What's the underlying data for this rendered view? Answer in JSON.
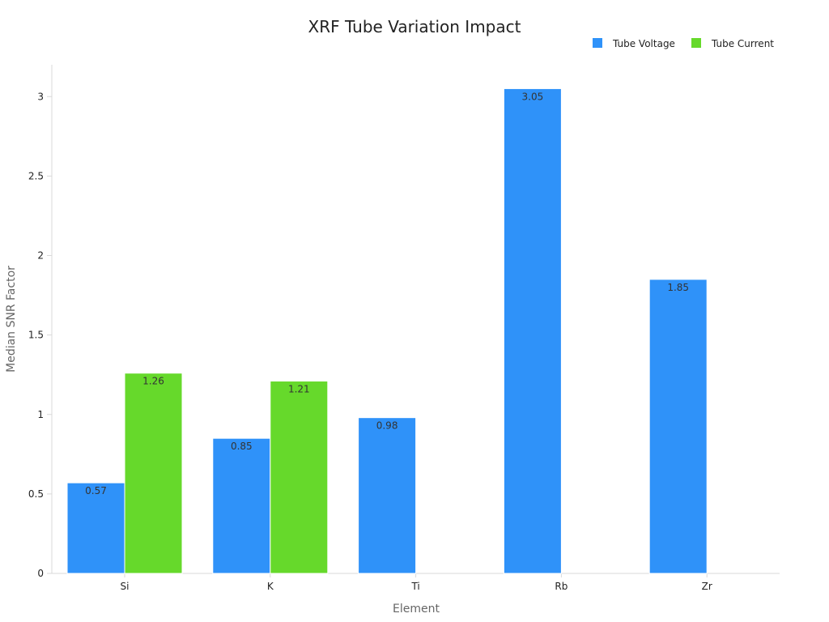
{
  "chart_data": {
    "type": "bar",
    "title": "XRF Tube Variation Impact",
    "xlabel": "Element",
    "ylabel": "Median SNR Factor",
    "categories": [
      "Si",
      "K",
      "Ti",
      "Rb",
      "Zr"
    ],
    "ylim": [
      0,
      3.2
    ],
    "yticks": [
      0,
      0.5,
      1,
      1.5,
      2,
      2.5,
      3
    ],
    "ytick_labels": [
      "0",
      "0.5",
      "1",
      "1.5",
      "2",
      "2.5",
      "3"
    ],
    "legend_position": "top-right",
    "grid": false,
    "series": [
      {
        "name": "Tube Voltage",
        "color": "#2F92F9",
        "values": [
          0.57,
          0.85,
          0.98,
          3.05,
          1.85
        ],
        "labels": [
          "0.57",
          "0.85",
          "0.98",
          "3.05",
          "1.85"
        ]
      },
      {
        "name": "Tube Current",
        "color": "#66D92B",
        "values": [
          1.26,
          1.21,
          null,
          null,
          null
        ],
        "labels": [
          "1.26",
          "1.21",
          null,
          null,
          null
        ]
      }
    ]
  }
}
